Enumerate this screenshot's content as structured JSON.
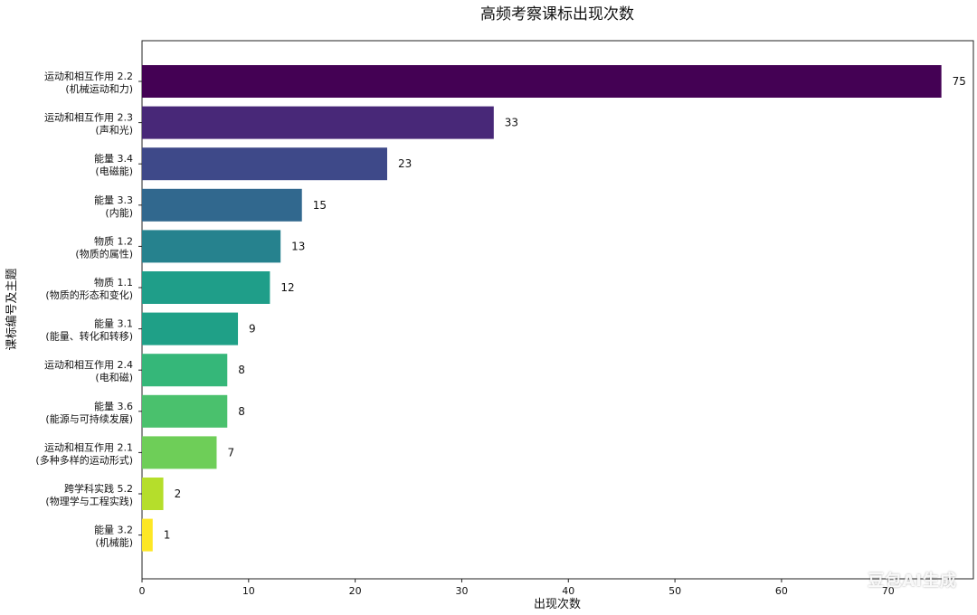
{
  "watermark": "豆包AI生成",
  "chart_data": {
    "type": "bar",
    "orientation": "horizontal",
    "title": "高频考察课标出现次数",
    "xlabel": "出现次数",
    "ylabel": "课标编号及主题",
    "xlim": [
      0,
      78
    ],
    "xticks": [
      0,
      10,
      20,
      30,
      40,
      50,
      60,
      70
    ],
    "grid": false,
    "categories": [
      [
        "运动和相互作用 2.2",
        "(机械运动和力)"
      ],
      [
        "运动和相互作用 2.3",
        "(声和光)"
      ],
      [
        "能量 3.4",
        "(电磁能)"
      ],
      [
        "能量 3.3",
        "(内能)"
      ],
      [
        "物质 1.2",
        "(物质的属性)"
      ],
      [
        "物质 1.1",
        "(物质的形态和变化)"
      ],
      [
        "能量 3.1",
        "(能量、转化和转移)"
      ],
      [
        "运动和相互作用 2.4",
        "(电和磁)"
      ],
      [
        "能量 3.6",
        "(能源与可持续发展)"
      ],
      [
        "运动和相互作用 2.1",
        "(多种多样的运动形式)"
      ],
      [
        "跨学科实践 5.2",
        "(物理学与工程实践)"
      ],
      [
        "能量 3.2",
        "(机械能)"
      ]
    ],
    "values": [
      75,
      33,
      23,
      15,
      13,
      12,
      9,
      8,
      8,
      7,
      2,
      1
    ],
    "colors": [
      "#440154",
      "#482878",
      "#3e4989",
      "#31688e",
      "#26828e",
      "#1f9e89",
      "#1fa087",
      "#35b779",
      "#4ac16d",
      "#6ece58",
      "#b5de2b",
      "#fde725"
    ]
  }
}
